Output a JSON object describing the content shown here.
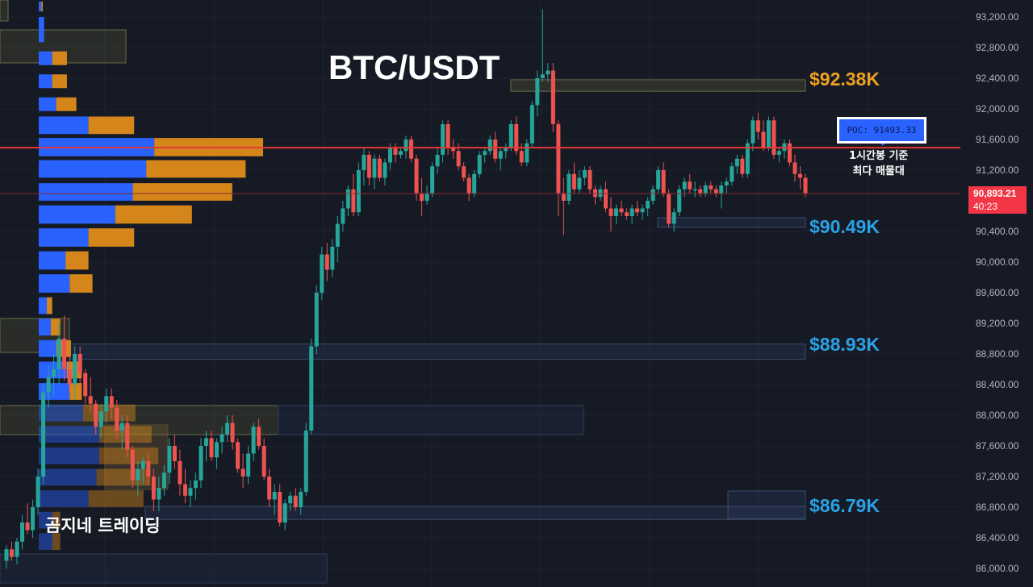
{
  "title": "BTC/USDT",
  "watermark": "곰지네 트레이딩",
  "colors": {
    "background": "#161a25",
    "up": "#26a69a",
    "down": "#ef5350",
    "poc_line": "#e53935",
    "vp_left": "#2962ff",
    "vp_right": "#d4861a",
    "zone_gold": "#f0a020",
    "zone_blue": "#29a3e6"
  },
  "poc": {
    "label": "POC: 91493.33",
    "note_line1": "1시간봉 기준",
    "note_line2": "최다 매물대"
  },
  "current_price": {
    "price": "90,893.21",
    "countdown": "40:23"
  },
  "zones": [
    {
      "label": "$92.38K",
      "color": "gold",
      "from": 92230,
      "to": 92380
    },
    {
      "label": "$90.49K",
      "color": "blue",
      "from": 90480,
      "to": 90580
    },
    {
      "label": "$88.93K",
      "color": "blue",
      "from": 88730,
      "to": 88930
    },
    {
      "label": "$86.79K",
      "color": "blue",
      "from": 86640,
      "to": 86810
    }
  ],
  "chart_data": {
    "type": "candlestick",
    "title": "BTC/USDT",
    "y_axis": {
      "ticks": [
        "93,200.00",
        "92,800.00",
        "92,400.00",
        "92,000.00",
        "91,600.00",
        "91,200.00",
        "90,400.00",
        "90,000.00",
        "89,600.00",
        "89,200.00",
        "88,800.00",
        "88,400.00",
        "88,000.00",
        "87,600.00",
        "87,200.00",
        "86,800.00",
        "86,400.00",
        "86,000.00"
      ],
      "tick_values": [
        93200,
        92800,
        92400,
        92000,
        91600,
        91200,
        90400,
        90000,
        89600,
        89200,
        88800,
        88400,
        88000,
        87600,
        87200,
        86800,
        86400,
        86000
      ],
      "range": [
        85820,
        93380
      ]
    },
    "poc_price": 91493.33,
    "last_price": 90893.21,
    "candles": [
      [
        86100,
        86300,
        86000,
        86250
      ],
      [
        86250,
        86350,
        86100,
        86150
      ],
      [
        86150,
        86400,
        86050,
        86350
      ],
      [
        86350,
        86700,
        86250,
        86600
      ],
      [
        86600,
        86850,
        86450,
        86500
      ],
      [
        86500,
        86900,
        86400,
        86800
      ],
      [
        86800,
        87300,
        86700,
        87200
      ],
      [
        87200,
        88400,
        87100,
        88300
      ],
      [
        88300,
        88650,
        88100,
        88500
      ],
      [
        88500,
        88800,
        88250,
        88600
      ],
      [
        88600,
        89200,
        88400,
        89000
      ],
      [
        89000,
        89300,
        88450,
        88600
      ],
      [
        88600,
        88800,
        88300,
        88400
      ],
      [
        88400,
        88900,
        88200,
        88800
      ],
      [
        88800,
        88900,
        88400,
        88550
      ],
      [
        88550,
        88600,
        88150,
        88250
      ],
      [
        88250,
        88500,
        88050,
        88150
      ],
      [
        88150,
        88200,
        87750,
        87850
      ],
      [
        87850,
        88150,
        87700,
        88050
      ],
      [
        88050,
        88350,
        87900,
        88250
      ],
      [
        88250,
        88350,
        87950,
        88100
      ],
      [
        88100,
        88200,
        87700,
        87800
      ],
      [
        87800,
        88000,
        87550,
        87900
      ],
      [
        87900,
        88000,
        87450,
        87550
      ],
      [
        87550,
        87600,
        87050,
        87150
      ],
      [
        87150,
        87400,
        86950,
        87300
      ],
      [
        87300,
        87450,
        87100,
        87400
      ],
      [
        87400,
        87500,
        87100,
        87200
      ],
      [
        87200,
        87300,
        86750,
        86900
      ],
      [
        86900,
        87200,
        86750,
        87050
      ],
      [
        87050,
        87350,
        86950,
        87250
      ],
      [
        87250,
        87700,
        87100,
        87600
      ],
      [
        87600,
        87750,
        87300,
        87400
      ],
      [
        87400,
        87550,
        86950,
        87100
      ],
      [
        87100,
        87300,
        86850,
        86950
      ],
      [
        86950,
        87150,
        86800,
        87050
      ],
      [
        87050,
        87250,
        86900,
        87150
      ],
      [
        87150,
        87700,
        87050,
        87600
      ],
      [
        87600,
        87800,
        87400,
        87700
      ],
      [
        87700,
        87800,
        87400,
        87450
      ],
      [
        87450,
        87700,
        87300,
        87650
      ],
      [
        87650,
        87850,
        87500,
        87750
      ],
      [
        87750,
        88000,
        87650,
        87900
      ],
      [
        87900,
        88000,
        87550,
        87650
      ],
      [
        87650,
        87700,
        87250,
        87300
      ],
      [
        87300,
        87500,
        87050,
        87200
      ],
      [
        87200,
        87600,
        87100,
        87500
      ],
      [
        87500,
        87900,
        87400,
        87850
      ],
      [
        87850,
        87950,
        87550,
        87600
      ],
      [
        87600,
        87700,
        87150,
        87200
      ],
      [
        87200,
        87300,
        86800,
        86900
      ],
      [
        86900,
        87100,
        86700,
        87000
      ],
      [
        87000,
        87100,
        86550,
        86600
      ],
      [
        86600,
        86900,
        86500,
        86850
      ],
      [
        86850,
        87000,
        86750,
        86950
      ],
      [
        86950,
        87050,
        86750,
        86800
      ],
      [
        86800,
        87050,
        86700,
        87000
      ],
      [
        87000,
        87900,
        86950,
        87800
      ],
      [
        87800,
        89000,
        87750,
        88900
      ],
      [
        88900,
        89700,
        88800,
        89600
      ],
      [
        89600,
        90200,
        89500,
        90100
      ],
      [
        90100,
        90250,
        89750,
        89900
      ],
      [
        89900,
        90300,
        89800,
        90200
      ],
      [
        90200,
        90600,
        90000,
        90500
      ],
      [
        90500,
        90800,
        90400,
        90700
      ],
      [
        90700,
        91000,
        90600,
        90950
      ],
      [
        90950,
        91150,
        90600,
        90650
      ],
      [
        90650,
        91300,
        90600,
        91200
      ],
      [
        91200,
        91500,
        91000,
        91400
      ],
      [
        91400,
        91450,
        91000,
        91100
      ],
      [
        91100,
        91400,
        90950,
        91350
      ],
      [
        91350,
        91400,
        91050,
        91100
      ],
      [
        91100,
        91350,
        91000,
        91300
      ],
      [
        91300,
        91550,
        91200,
        91500
      ],
      [
        91500,
        91550,
        91300,
        91400
      ],
      [
        91400,
        91500,
        91350,
        91450
      ],
      [
        91450,
        91650,
        91350,
        91600
      ],
      [
        91600,
        91650,
        91300,
        91350
      ],
      [
        91350,
        91400,
        90800,
        90900
      ],
      [
        90900,
        91100,
        90600,
        90800
      ],
      [
        90800,
        91000,
        90750,
        90900
      ],
      [
        90900,
        91300,
        90850,
        91250
      ],
      [
        91250,
        91500,
        91150,
        91400
      ],
      [
        91400,
        91850,
        91300,
        91800
      ],
      [
        91800,
        91850,
        91400,
        91500
      ],
      [
        91500,
        91600,
        91350,
        91450
      ],
      [
        91450,
        91550,
        91200,
        91250
      ],
      [
        91250,
        91300,
        91050,
        91100
      ],
      [
        91100,
        91150,
        90800,
        90900
      ],
      [
        90900,
        91200,
        90850,
        91150
      ],
      [
        91150,
        91450,
        91100,
        91400
      ],
      [
        91400,
        91500,
        91300,
        91450
      ],
      [
        91450,
        91650,
        91400,
        91600
      ],
      [
        91600,
        91700,
        91300,
        91350
      ],
      [
        91350,
        91500,
        91200,
        91450
      ],
      [
        91450,
        91550,
        91350,
        91500
      ],
      [
        91500,
        91850,
        91450,
        91800
      ],
      [
        91800,
        91900,
        91400,
        91450
      ],
      [
        91450,
        91550,
        91250,
        91300
      ],
      [
        91300,
        91600,
        91250,
        91550
      ],
      [
        91550,
        92100,
        91500,
        92050
      ],
      [
        92050,
        92500,
        91900,
        92400
      ],
      [
        92400,
        93300,
        92350,
        92450
      ],
      [
        92450,
        92600,
        92350,
        92500
      ],
      [
        92500,
        92600,
        91700,
        91800
      ],
      [
        91800,
        91850,
        90600,
        90900
      ],
      [
        90900,
        91100,
        90350,
        90800
      ],
      [
        90800,
        91200,
        90750,
        91150
      ],
      [
        91150,
        91300,
        90900,
        90950
      ],
      [
        90950,
        91200,
        90900,
        91100
      ],
      [
        91100,
        91250,
        91000,
        91200
      ],
      [
        91200,
        91250,
        90900,
        90950
      ],
      [
        90950,
        91000,
        90750,
        90850
      ],
      [
        90850,
        91000,
        90800,
        90950
      ],
      [
        90950,
        91050,
        90650,
        90700
      ],
      [
        90700,
        90850,
        90400,
        90600
      ],
      [
        90600,
        90750,
        90500,
        90700
      ],
      [
        90700,
        90800,
        90600,
        90650
      ],
      [
        90650,
        90700,
        90550,
        90600
      ],
      [
        90600,
        90750,
        90500,
        90700
      ],
      [
        90700,
        90800,
        90600,
        90650
      ],
      [
        90650,
        90750,
        90550,
        90700
      ],
      [
        90700,
        90850,
        90600,
        90800
      ],
      [
        90800,
        91000,
        90750,
        90950
      ],
      [
        90950,
        91250,
        90900,
        91200
      ],
      [
        91200,
        91300,
        90850,
        90900
      ],
      [
        90900,
        90950,
        90450,
        90500
      ],
      [
        90500,
        90700,
        90400,
        90650
      ],
      [
        90650,
        91000,
        90600,
        90950
      ],
      [
        90950,
        91100,
        90850,
        91050
      ],
      [
        91050,
        91150,
        90900,
        90950
      ],
      [
        90950,
        91050,
        90850,
        90950
      ],
      [
        90950,
        91000,
        90850,
        90900
      ],
      [
        90900,
        91050,
        90850,
        91000
      ],
      [
        91000,
        91050,
        90900,
        90950
      ],
      [
        90950,
        91000,
        90850,
        90900
      ],
      [
        90900,
        91050,
        90700,
        91000
      ],
      [
        91000,
        91100,
        90900,
        91050
      ],
      [
        91050,
        91300,
        91000,
        91250
      ],
      [
        91250,
        91400,
        91150,
        91350
      ],
      [
        91350,
        91400,
        91100,
        91150
      ],
      [
        91150,
        91600,
        91100,
        91550
      ],
      [
        91550,
        91900,
        91450,
        91850
      ],
      [
        91850,
        91950,
        91600,
        91700
      ],
      [
        91700,
        91850,
        91450,
        91500
      ],
      [
        91500,
        91900,
        91450,
        91850
      ],
      [
        91850,
        91900,
        91350,
        91400
      ],
      [
        91400,
        91500,
        91300,
        91450
      ],
      [
        91450,
        91600,
        91350,
        91550
      ],
      [
        91550,
        91600,
        91250,
        91300
      ],
      [
        91300,
        91400,
        91050,
        91150
      ],
      [
        91150,
        91250,
        90950,
        91100
      ],
      [
        91100,
        91150,
        90850,
        90900
      ]
    ],
    "volume_profile": [
      {
        "from": 93250,
        "to": 93400,
        "left": 0.02,
        "right": 0.01
      },
      {
        "from": 92850,
        "to": 93200,
        "left": 0.04,
        "right": 0.0
      },
      {
        "from": 92550,
        "to": 92750,
        "left": 0.1,
        "right": 0.11
      },
      {
        "from": 92250,
        "to": 92450,
        "left": 0.1,
        "right": 0.11
      },
      {
        "from": 91950,
        "to": 92150,
        "left": 0.13,
        "right": 0.15
      },
      {
        "from": 91650,
        "to": 91900,
        "left": 0.37,
        "right": 0.34
      },
      {
        "from": 91360,
        "to": 91620,
        "left": 0.86,
        "right": 0.81
      },
      {
        "from": 91080,
        "to": 91330,
        "left": 0.8,
        "right": 0.74
      },
      {
        "from": 90780,
        "to": 91030,
        "left": 0.7,
        "right": 0.74
      },
      {
        "from": 90480,
        "to": 90740,
        "left": 0.57,
        "right": 0.57
      },
      {
        "from": 90180,
        "to": 90440,
        "left": 0.37,
        "right": 0.34
      },
      {
        "from": 89880,
        "to": 90140,
        "left": 0.2,
        "right": 0.17
      },
      {
        "from": 89580,
        "to": 89840,
        "left": 0.23,
        "right": 0.17
      },
      {
        "from": 89300,
        "to": 89540,
        "left": 0.06,
        "right": 0.04
      },
      {
        "from": 89020,
        "to": 89260,
        "left": 0.09,
        "right": 0.07
      },
      {
        "from": 88740,
        "to": 88980,
        "left": 0.13,
        "right": 0.11
      },
      {
        "from": 88460,
        "to": 88700,
        "left": 0.21,
        "right": 0.11
      },
      {
        "from": 88180,
        "to": 88420,
        "left": 0.23,
        "right": 0.09
      },
      {
        "from": 87900,
        "to": 88140,
        "left": 0.33,
        "right": 0.39
      },
      {
        "from": 87620,
        "to": 87860,
        "left": 0.45,
        "right": 0.39
      },
      {
        "from": 87340,
        "to": 87580,
        "left": 0.45,
        "right": 0.44
      },
      {
        "from": 87060,
        "to": 87300,
        "left": 0.43,
        "right": 0.4
      },
      {
        "from": 86780,
        "to": 87020,
        "left": 0.37,
        "right": 0.41
      },
      {
        "from": 86500,
        "to": 86740,
        "left": 0.1,
        "right": 0.06
      },
      {
        "from": 86220,
        "to": 86460,
        "left": 0.1,
        "right": 0.06
      }
    ]
  }
}
